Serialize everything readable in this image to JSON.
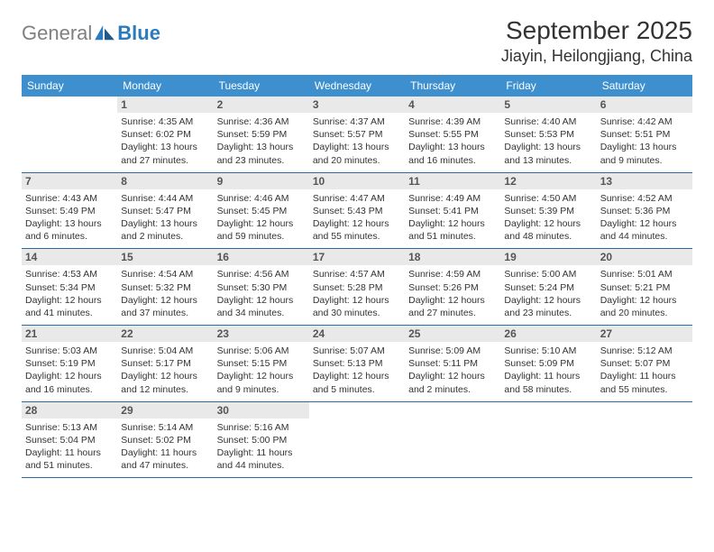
{
  "logo": {
    "word1": "General",
    "word2": "Blue"
  },
  "header": {
    "month": "September 2025",
    "location": "Jiayin, Heilongjiang, China"
  },
  "colors": {
    "header_bg": "#3d8fce",
    "header_fg": "#ffffff",
    "daynum_bg": "#e9e9e9",
    "rule": "#2b6ca3",
    "logo_gray": "#808080",
    "logo_blue": "#2b7bbf"
  },
  "calendar": {
    "type": "table",
    "columns": [
      "Sunday",
      "Monday",
      "Tuesday",
      "Wednesday",
      "Thursday",
      "Friday",
      "Saturday"
    ],
    "leading_blanks": 1,
    "days": [
      {
        "n": 1,
        "sr": "4:35 AM",
        "ss": "6:02 PM",
        "dl": "13 hours and 27 minutes."
      },
      {
        "n": 2,
        "sr": "4:36 AM",
        "ss": "5:59 PM",
        "dl": "13 hours and 23 minutes."
      },
      {
        "n": 3,
        "sr": "4:37 AM",
        "ss": "5:57 PM",
        "dl": "13 hours and 20 minutes."
      },
      {
        "n": 4,
        "sr": "4:39 AM",
        "ss": "5:55 PM",
        "dl": "13 hours and 16 minutes."
      },
      {
        "n": 5,
        "sr": "4:40 AM",
        "ss": "5:53 PM",
        "dl": "13 hours and 13 minutes."
      },
      {
        "n": 6,
        "sr": "4:42 AM",
        "ss": "5:51 PM",
        "dl": "13 hours and 9 minutes."
      },
      {
        "n": 7,
        "sr": "4:43 AM",
        "ss": "5:49 PM",
        "dl": "13 hours and 6 minutes."
      },
      {
        "n": 8,
        "sr": "4:44 AM",
        "ss": "5:47 PM",
        "dl": "13 hours and 2 minutes."
      },
      {
        "n": 9,
        "sr": "4:46 AM",
        "ss": "5:45 PM",
        "dl": "12 hours and 59 minutes."
      },
      {
        "n": 10,
        "sr": "4:47 AM",
        "ss": "5:43 PM",
        "dl": "12 hours and 55 minutes."
      },
      {
        "n": 11,
        "sr": "4:49 AM",
        "ss": "5:41 PM",
        "dl": "12 hours and 51 minutes."
      },
      {
        "n": 12,
        "sr": "4:50 AM",
        "ss": "5:39 PM",
        "dl": "12 hours and 48 minutes."
      },
      {
        "n": 13,
        "sr": "4:52 AM",
        "ss": "5:36 PM",
        "dl": "12 hours and 44 minutes."
      },
      {
        "n": 14,
        "sr": "4:53 AM",
        "ss": "5:34 PM",
        "dl": "12 hours and 41 minutes."
      },
      {
        "n": 15,
        "sr": "4:54 AM",
        "ss": "5:32 PM",
        "dl": "12 hours and 37 minutes."
      },
      {
        "n": 16,
        "sr": "4:56 AM",
        "ss": "5:30 PM",
        "dl": "12 hours and 34 minutes."
      },
      {
        "n": 17,
        "sr": "4:57 AM",
        "ss": "5:28 PM",
        "dl": "12 hours and 30 minutes."
      },
      {
        "n": 18,
        "sr": "4:59 AM",
        "ss": "5:26 PM",
        "dl": "12 hours and 27 minutes."
      },
      {
        "n": 19,
        "sr": "5:00 AM",
        "ss": "5:24 PM",
        "dl": "12 hours and 23 minutes."
      },
      {
        "n": 20,
        "sr": "5:01 AM",
        "ss": "5:21 PM",
        "dl": "12 hours and 20 minutes."
      },
      {
        "n": 21,
        "sr": "5:03 AM",
        "ss": "5:19 PM",
        "dl": "12 hours and 16 minutes."
      },
      {
        "n": 22,
        "sr": "5:04 AM",
        "ss": "5:17 PM",
        "dl": "12 hours and 12 minutes."
      },
      {
        "n": 23,
        "sr": "5:06 AM",
        "ss": "5:15 PM",
        "dl": "12 hours and 9 minutes."
      },
      {
        "n": 24,
        "sr": "5:07 AM",
        "ss": "5:13 PM",
        "dl": "12 hours and 5 minutes."
      },
      {
        "n": 25,
        "sr": "5:09 AM",
        "ss": "5:11 PM",
        "dl": "12 hours and 2 minutes."
      },
      {
        "n": 26,
        "sr": "5:10 AM",
        "ss": "5:09 PM",
        "dl": "11 hours and 58 minutes."
      },
      {
        "n": 27,
        "sr": "5:12 AM",
        "ss": "5:07 PM",
        "dl": "11 hours and 55 minutes."
      },
      {
        "n": 28,
        "sr": "5:13 AM",
        "ss": "5:04 PM",
        "dl": "11 hours and 51 minutes."
      },
      {
        "n": 29,
        "sr": "5:14 AM",
        "ss": "5:02 PM",
        "dl": "11 hours and 47 minutes."
      },
      {
        "n": 30,
        "sr": "5:16 AM",
        "ss": "5:00 PM",
        "dl": "11 hours and 44 minutes."
      }
    ],
    "labels": {
      "sunrise": "Sunrise:",
      "sunset": "Sunset:",
      "daylight": "Daylight:"
    }
  }
}
